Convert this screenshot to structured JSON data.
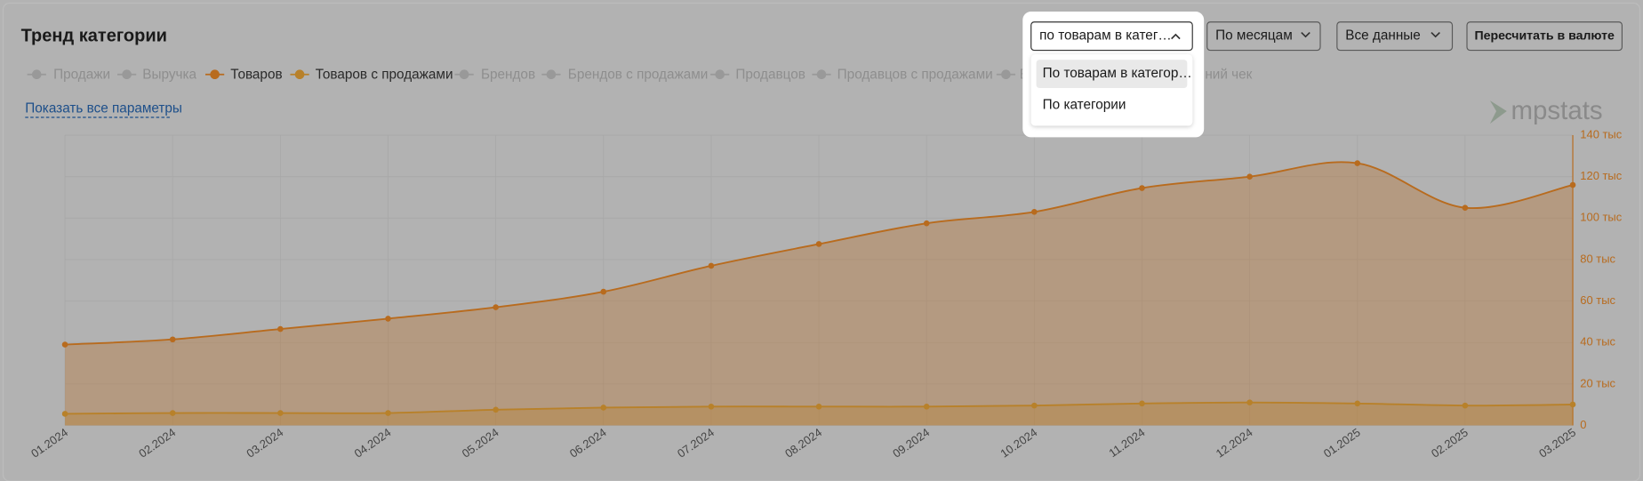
{
  "title": "Тренд категории",
  "controls": {
    "mode_select": "по товарам в катег…",
    "period": "По месяцам",
    "range": "Все данные",
    "currency_button": "Пересчитать в валюте"
  },
  "dropdown": {
    "options": [
      "По товарам в категор…",
      "По категории"
    ]
  },
  "show_all_link": "Показать все параметры",
  "logo": "mpstats",
  "legend": [
    {
      "name": "Продажи",
      "color": "#999999",
      "active": false
    },
    {
      "name": "Выручка",
      "color": "#999999",
      "active": false
    },
    {
      "name": "Товаров",
      "color": "#b86b1e",
      "active": true
    },
    {
      "name": "Товаров с продажами",
      "color": "#b8812a",
      "active": true
    },
    {
      "name": "Брендов",
      "color": "#999999",
      "active": false
    },
    {
      "name": "Брендов с продажами",
      "color": "#999999",
      "active": false
    },
    {
      "name": "Продавцов",
      "color": "#999999",
      "active": false
    },
    {
      "name": "Продавцов с продажами",
      "color": "#999999",
      "active": false
    },
    {
      "name": "Вы",
      "color": "#999999",
      "active": false
    },
    {
      "name": "ний чек",
      "color": "#999999",
      "active": false
    }
  ],
  "chart_data": {
    "type": "area",
    "categories": [
      "01.2024",
      "02.2024",
      "03.2024",
      "04.2024",
      "05.2024",
      "06.2024",
      "07.2024",
      "08.2024",
      "09.2024",
      "10.2024",
      "11.2024",
      "12.2024",
      "01.2025",
      "02.2025",
      "03.2025"
    ],
    "series": [
      {
        "color": "#b86b1e",
        "values": [
          39000,
          41500,
          46500,
          51500,
          57000,
          64500,
          77000,
          87500,
          97500,
          103000,
          114500,
          120000,
          126500,
          105000,
          116000
        ]
      },
      {
        "color": "#b8812a",
        "values": [
          5600,
          6000,
          6000,
          6000,
          7600,
          8600,
          9100,
          9100,
          9100,
          9600,
          10600,
          11100,
          10600,
          9600,
          10100
        ]
      }
    ],
    "ylim": [
      0,
      140000
    ],
    "yticks": [
      0,
      {
        "value": 20000,
        "label": "20 тыс"
      },
      {
        "value": 40000,
        "label": "40 тыс"
      },
      {
        "value": 60000,
        "label": "60 тыс"
      },
      {
        "value": 80000,
        "label": "80 тыс"
      },
      {
        "value": 100000,
        "label": "100 тыс"
      },
      {
        "value": 120000,
        "label": "120 тыс"
      },
      {
        "value": 140000,
        "label": "140 тыс"
      }
    ],
    "grid": true
  }
}
